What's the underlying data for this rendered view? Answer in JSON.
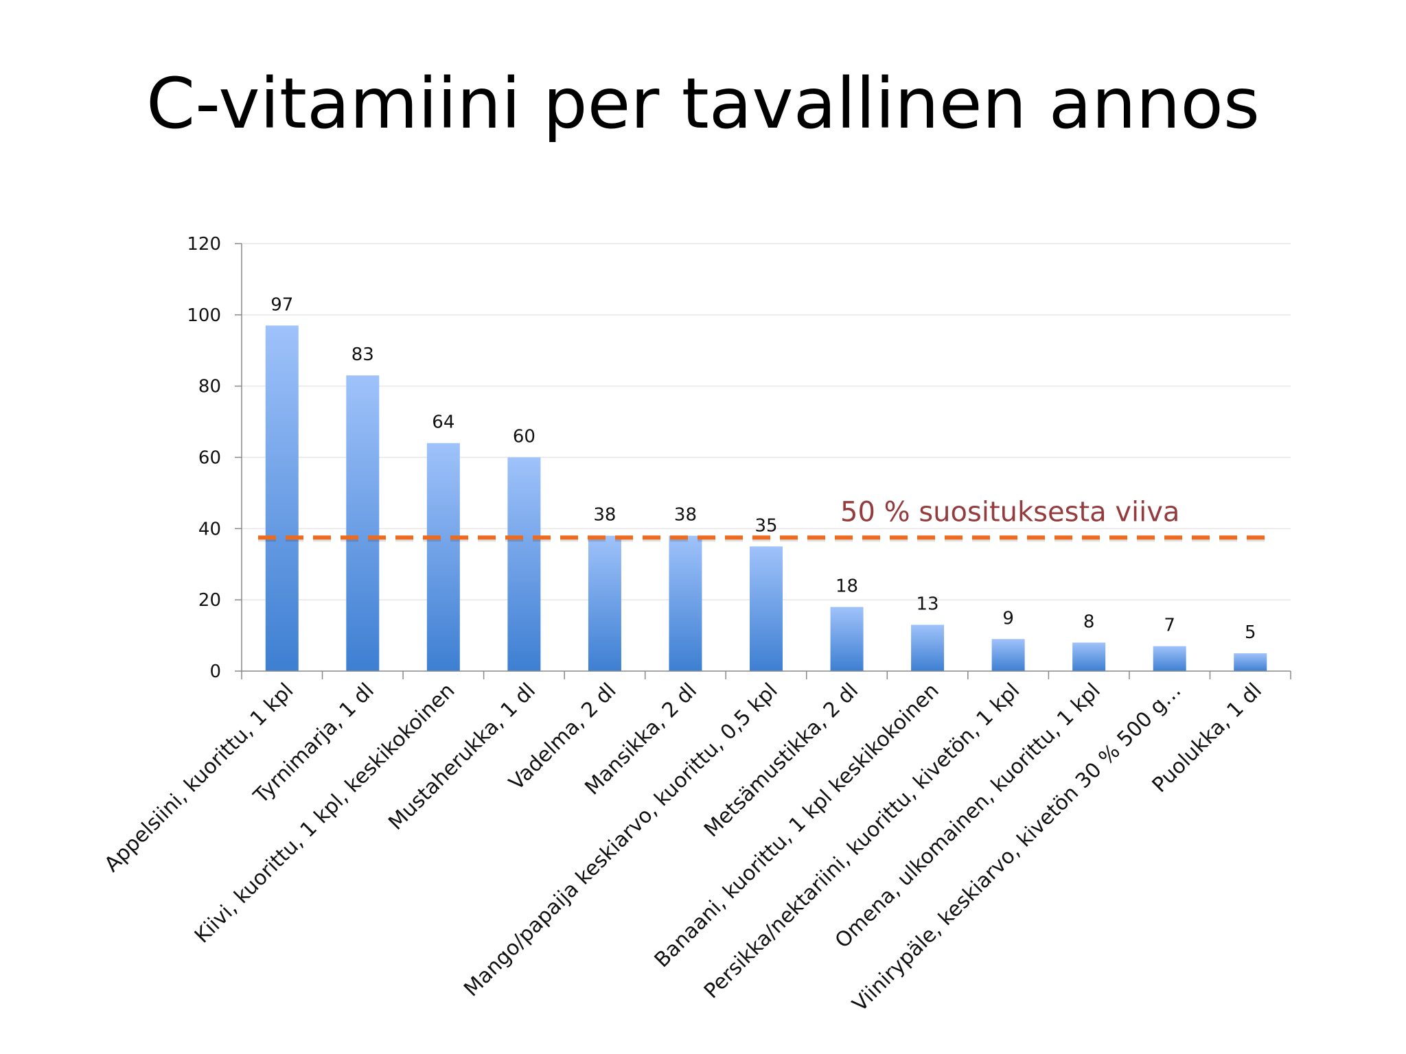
{
  "chart_data": {
    "type": "bar",
    "title": "C-vitamiini per tavallinen annos",
    "xlabel": "",
    "ylabel": "",
    "ylim": [
      0,
      120
    ],
    "yticks": [
      0,
      20,
      40,
      60,
      80,
      100,
      120
    ],
    "categories": [
      "Appelsiini, kuorittu, 1 kpl",
      "Tyrnimarja, 1 dl",
      "Kiivi, kuorittu, 1 kpl, keskikokoinen",
      "Mustaherukka, 1 dl",
      "Vadelma, 2 dl",
      "Mansikka, 2 dl",
      "Mango/papaija keskiarvo, kuorittu, 0,5 kpl",
      "Metsämustikka, 2 dl",
      "Banaani, kuorittu, 1 kpl keskikokoinen",
      "Persikka/nektariini, kuorittu, kivetön, 1 kpl",
      "Omena, ulkomainen, kuorittu, 1 kpl",
      "Viinirypäle, keskiarvo, kivetön 30 % 500 g…",
      "Puolukka, 1 dl"
    ],
    "values": [
      97,
      83,
      64,
      60,
      38,
      38,
      35,
      18,
      13,
      9,
      8,
      7,
      5
    ],
    "value_labels": [
      "97",
      "83",
      "64",
      "60",
      "38",
      "38",
      "35",
      "18",
      "13",
      "9",
      "8",
      "7",
      "5"
    ],
    "bar_color": "#4a86d8",
    "grid": true,
    "reference_line": {
      "value": 37.5,
      "label": "50 % suosituksesta viiva",
      "color": "#ed6b1f",
      "label_color": "#943b3e",
      "style": "dashed"
    }
  }
}
